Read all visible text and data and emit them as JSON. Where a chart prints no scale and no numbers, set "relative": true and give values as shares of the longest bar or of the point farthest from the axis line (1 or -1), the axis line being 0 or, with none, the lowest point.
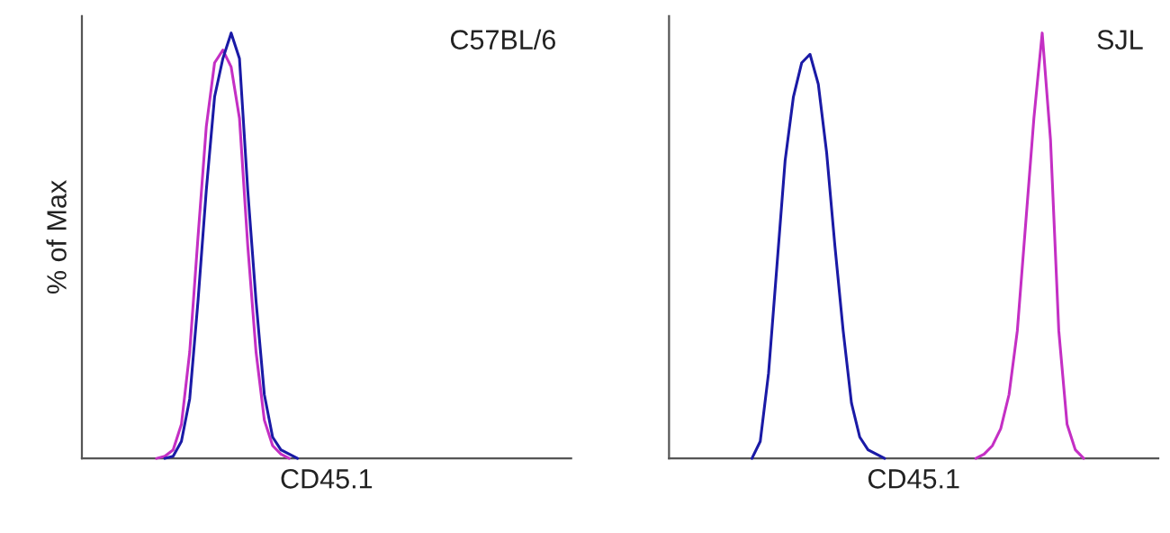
{
  "chart_data": [
    {
      "type": "line",
      "ylabel": "% of Max",
      "xlabel": "CD45.1",
      "annotations": [
        "C57BL/6"
      ],
      "relative": true,
      "tick_labels": false,
      "categories": [
        null,
        null,
        null,
        null,
        null,
        null,
        null,
        null,
        null,
        null,
        null,
        null,
        null,
        null,
        null,
        null,
        null,
        null,
        null,
        null,
        null,
        null,
        null,
        null,
        null,
        null,
        null,
        null,
        null,
        null,
        null,
        null,
        null,
        null,
        null,
        null,
        null,
        null,
        null,
        null,
        null,
        null,
        null,
        null,
        null,
        null,
        null,
        null,
        null,
        null,
        null,
        null,
        null,
        null,
        null,
        null,
        null,
        null,
        null,
        null
      ],
      "series": [
        {
          "color": "#c42fc4",
          "values": [
            null,
            null,
            null,
            null,
            null,
            null,
            null,
            null,
            null,
            0,
            0.005,
            0.02,
            0.08,
            0.25,
            0.52,
            0.78,
            0.93,
            0.96,
            0.92,
            0.8,
            0.5,
            0.25,
            0.09,
            0.03,
            0.01,
            0,
            null,
            null,
            null,
            null,
            null,
            null,
            null,
            null,
            null,
            null,
            null,
            null,
            null,
            null,
            null,
            null,
            null,
            null,
            null,
            null,
            null,
            null,
            null,
            null,
            null,
            null,
            null,
            null,
            null,
            null,
            null,
            null,
            null,
            null
          ]
        },
        {
          "color": "#1a1aa6",
          "values": [
            null,
            null,
            null,
            null,
            null,
            null,
            null,
            null,
            null,
            null,
            0,
            0.005,
            0.04,
            0.14,
            0.37,
            0.63,
            0.85,
            0.94,
            1,
            0.94,
            0.63,
            0.37,
            0.15,
            0.05,
            0.02,
            0.01,
            0,
            null,
            null,
            null,
            null,
            null,
            null,
            null,
            null,
            null,
            null,
            null,
            null,
            null,
            null,
            null,
            null,
            null,
            null,
            null,
            null,
            null,
            null,
            null,
            null,
            null,
            null,
            null,
            null,
            null,
            null,
            null,
            null,
            null
          ]
        }
      ]
    },
    {
      "type": "line",
      "xlabel": "CD45.1",
      "annotations": [
        "SJL"
      ],
      "relative": true,
      "tick_labels": false,
      "categories": [
        null,
        null,
        null,
        null,
        null,
        null,
        null,
        null,
        null,
        null,
        null,
        null,
        null,
        null,
        null,
        null,
        null,
        null,
        null,
        null,
        null,
        null,
        null,
        null,
        null,
        null,
        null,
        null,
        null,
        null,
        null,
        null,
        null,
        null,
        null,
        null,
        null,
        null,
        null,
        null,
        null,
        null,
        null,
        null,
        null,
        null,
        null,
        null,
        null,
        null,
        null,
        null,
        null,
        null,
        null,
        null,
        null,
        null,
        null,
        null
      ],
      "series": [
        {
          "color": "#1a1aa6",
          "values": [
            null,
            null,
            null,
            null,
            null,
            null,
            null,
            null,
            null,
            null,
            0,
            0.04,
            0.2,
            0.45,
            0.7,
            0.85,
            0.93,
            0.95,
            0.88,
            0.72,
            0.5,
            0.3,
            0.13,
            0.05,
            0.02,
            0.01,
            0,
            null,
            null,
            null,
            null,
            null,
            null,
            null,
            null,
            null,
            null,
            null,
            null,
            null,
            null,
            null,
            null,
            null,
            null,
            null,
            null,
            null,
            null,
            null,
            null,
            null,
            null,
            null,
            null,
            null,
            null,
            null,
            null,
            null
          ]
        },
        {
          "color": "#c42fc4",
          "values": [
            null,
            null,
            null,
            null,
            null,
            null,
            null,
            null,
            null,
            null,
            null,
            null,
            null,
            null,
            null,
            null,
            null,
            null,
            null,
            null,
            null,
            null,
            null,
            null,
            null,
            null,
            null,
            null,
            null,
            null,
            null,
            null,
            null,
            null,
            null,
            null,
            null,
            0,
            0.01,
            0.03,
            0.07,
            0.15,
            0.3,
            0.55,
            0.8,
            1,
            0.75,
            0.3,
            0.08,
            0.02,
            0,
            null,
            null,
            null,
            null,
            null,
            null,
            null,
            null,
            null
          ]
        }
      ]
    }
  ]
}
